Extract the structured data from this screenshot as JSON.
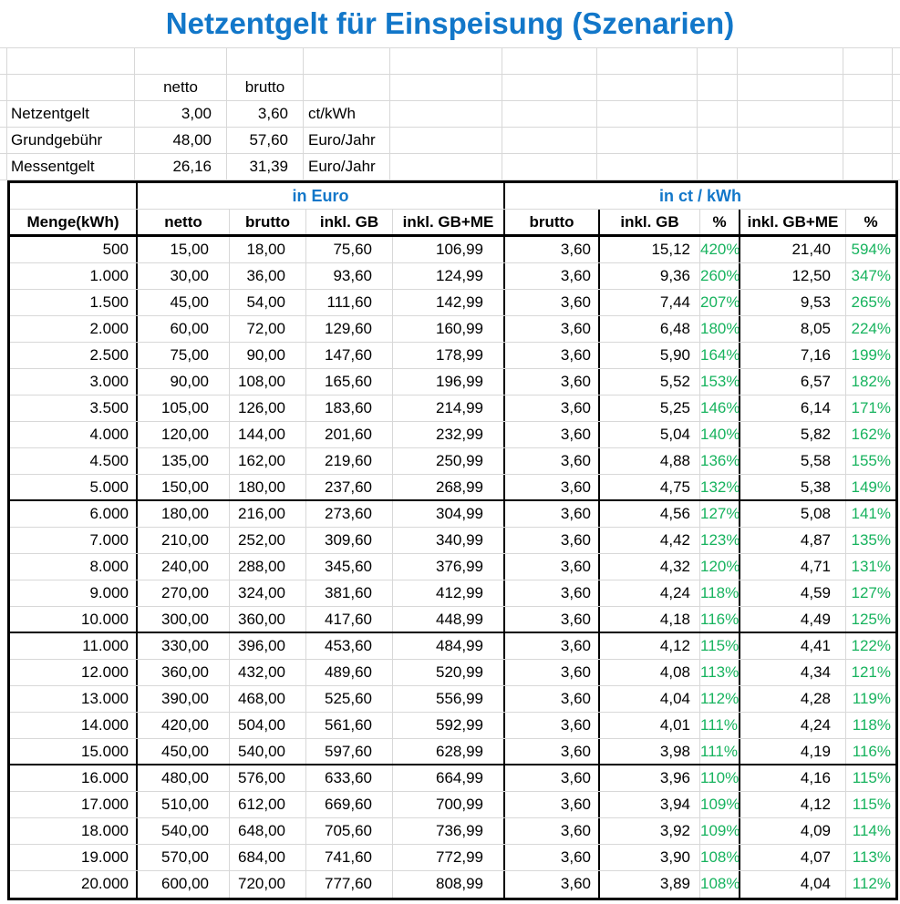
{
  "title": "Netzentgelt für Einspeisung (Szenarien)",
  "colors": {
    "accent_blue": "#1277c9",
    "percent_green": "#17b35e",
    "gridline": "#d8d8d8"
  },
  "info_table": {
    "col_headers": {
      "netto": "netto",
      "brutto": "brutto"
    },
    "rows": [
      {
        "label": "Netzentgelt",
        "netto": "3,00",
        "brutto": "3,60",
        "unit": "ct/kWh"
      },
      {
        "label": "Grundgebühr",
        "netto": "48,00",
        "brutto": "57,60",
        "unit": "Euro/Jahr"
      },
      {
        "label": "Messentgelt",
        "netto": "26,16",
        "brutto": "31,39",
        "unit": "Euro/Jahr"
      }
    ]
  },
  "main_table": {
    "group_headers": {
      "euro": "in Euro",
      "ct_kwh": "in ct / kWh"
    },
    "col_headers": [
      "Menge(kWh)",
      "netto",
      "brutto",
      "inkl. GB",
      "inkl. GB+ME",
      "brutto",
      "inkl. GB",
      "%",
      "inkl. GB+ME",
      "%"
    ],
    "thick_separator_after_row_indices": [
      9,
      14,
      19
    ],
    "rows": [
      [
        "500",
        "15,00",
        "18,00",
        "75,60",
        "106,99",
        "3,60",
        "15,12",
        "420%",
        "21,40",
        "594%"
      ],
      [
        "1.000",
        "30,00",
        "36,00",
        "93,60",
        "124,99",
        "3,60",
        "9,36",
        "260%",
        "12,50",
        "347%"
      ],
      [
        "1.500",
        "45,00",
        "54,00",
        "111,60",
        "142,99",
        "3,60",
        "7,44",
        "207%",
        "9,53",
        "265%"
      ],
      [
        "2.000",
        "60,00",
        "72,00",
        "129,60",
        "160,99",
        "3,60",
        "6,48",
        "180%",
        "8,05",
        "224%"
      ],
      [
        "2.500",
        "75,00",
        "90,00",
        "147,60",
        "178,99",
        "3,60",
        "5,90",
        "164%",
        "7,16",
        "199%"
      ],
      [
        "3.000",
        "90,00",
        "108,00",
        "165,60",
        "196,99",
        "3,60",
        "5,52",
        "153%",
        "6,57",
        "182%"
      ],
      [
        "3.500",
        "105,00",
        "126,00",
        "183,60",
        "214,99",
        "3,60",
        "5,25",
        "146%",
        "6,14",
        "171%"
      ],
      [
        "4.000",
        "120,00",
        "144,00",
        "201,60",
        "232,99",
        "3,60",
        "5,04",
        "140%",
        "5,82",
        "162%"
      ],
      [
        "4.500",
        "135,00",
        "162,00",
        "219,60",
        "250,99",
        "3,60",
        "4,88",
        "136%",
        "5,58",
        "155%"
      ],
      [
        "5.000",
        "150,00",
        "180,00",
        "237,60",
        "268,99",
        "3,60",
        "4,75",
        "132%",
        "5,38",
        "149%"
      ],
      [
        "6.000",
        "180,00",
        "216,00",
        "273,60",
        "304,99",
        "3,60",
        "4,56",
        "127%",
        "5,08",
        "141%"
      ],
      [
        "7.000",
        "210,00",
        "252,00",
        "309,60",
        "340,99",
        "3,60",
        "4,42",
        "123%",
        "4,87",
        "135%"
      ],
      [
        "8.000",
        "240,00",
        "288,00",
        "345,60",
        "376,99",
        "3,60",
        "4,32",
        "120%",
        "4,71",
        "131%"
      ],
      [
        "9.000",
        "270,00",
        "324,00",
        "381,60",
        "412,99",
        "3,60",
        "4,24",
        "118%",
        "4,59",
        "127%"
      ],
      [
        "10.000",
        "300,00",
        "360,00",
        "417,60",
        "448,99",
        "3,60",
        "4,18",
        "116%",
        "4,49",
        "125%"
      ],
      [
        "11.000",
        "330,00",
        "396,00",
        "453,60",
        "484,99",
        "3,60",
        "4,12",
        "115%",
        "4,41",
        "122%"
      ],
      [
        "12.000",
        "360,00",
        "432,00",
        "489,60",
        "520,99",
        "3,60",
        "4,08",
        "113%",
        "4,34",
        "121%"
      ],
      [
        "13.000",
        "390,00",
        "468,00",
        "525,60",
        "556,99",
        "3,60",
        "4,04",
        "112%",
        "4,28",
        "119%"
      ],
      [
        "14.000",
        "420,00",
        "504,00",
        "561,60",
        "592,99",
        "3,60",
        "4,01",
        "111%",
        "4,24",
        "118%"
      ],
      [
        "15.000",
        "450,00",
        "540,00",
        "597,60",
        "628,99",
        "3,60",
        "3,98",
        "111%",
        "4,19",
        "116%"
      ],
      [
        "16.000",
        "480,00",
        "576,00",
        "633,60",
        "664,99",
        "3,60",
        "3,96",
        "110%",
        "4,16",
        "115%"
      ],
      [
        "17.000",
        "510,00",
        "612,00",
        "669,60",
        "700,99",
        "3,60",
        "3,94",
        "109%",
        "4,12",
        "115%"
      ],
      [
        "18.000",
        "540,00",
        "648,00",
        "705,60",
        "736,99",
        "3,60",
        "3,92",
        "109%",
        "4,09",
        "114%"
      ],
      [
        "19.000",
        "570,00",
        "684,00",
        "741,60",
        "772,99",
        "3,60",
        "3,90",
        "108%",
        "4,07",
        "113%"
      ],
      [
        "20.000",
        "600,00",
        "720,00",
        "777,60",
        "808,99",
        "3,60",
        "3,89",
        "108%",
        "4,04",
        "112%"
      ]
    ]
  }
}
